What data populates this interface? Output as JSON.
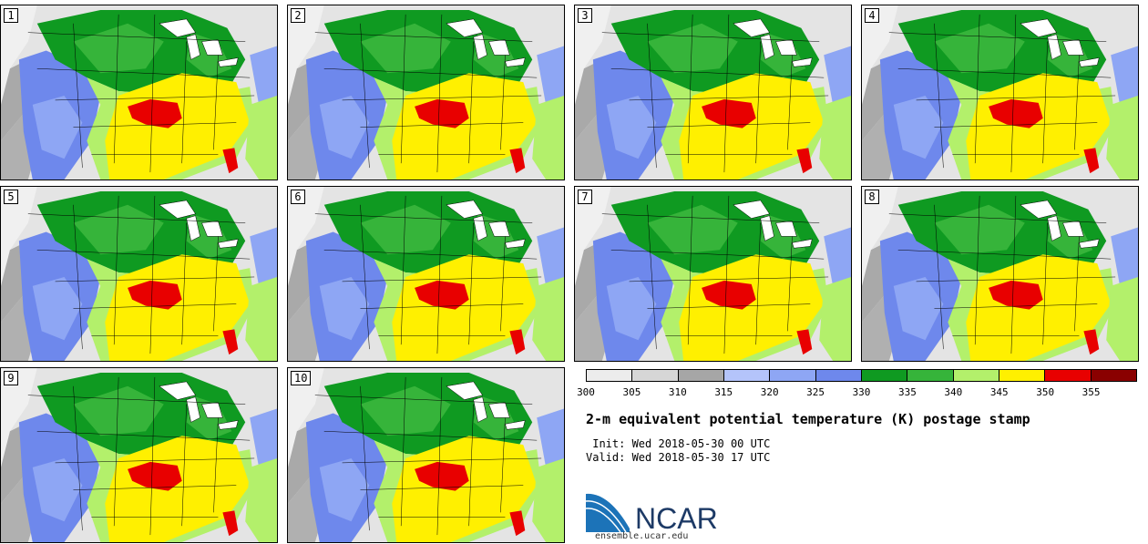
{
  "panels": [
    "1",
    "2",
    "3",
    "4",
    "5",
    "6",
    "7",
    "8",
    "9",
    "10"
  ],
  "colorbar": {
    "colors": [
      "#ececec",
      "#d6d6d6",
      "#a6a6a6",
      "#b4c4fa",
      "#8ea6f4",
      "#6e88ec",
      "#0f9a21",
      "#36b43a",
      "#b3f06b",
      "#fff000",
      "#e80000",
      "#8a0000"
    ],
    "ticks": [
      "300",
      "305",
      "310",
      "315",
      "320",
      "325",
      "330",
      "335",
      "340",
      "345",
      "350",
      "355"
    ]
  },
  "title": "2-m equivalent potential temperature (K) postage stamp",
  "init": " Init: Wed 2018-05-30 00 UTC",
  "valid": "Valid: Wed 2018-05-30 17 UTC",
  "logo_text": "NCAR",
  "url": "ensemble.ucar.edu"
}
